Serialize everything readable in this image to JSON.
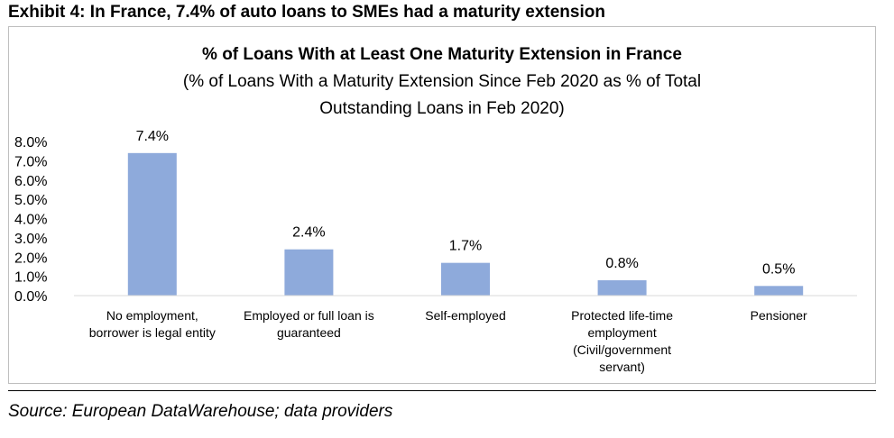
{
  "exhibit_title": "Exhibit 4: In France, 7.4% of auto loans to SMEs had a maturity extension",
  "source": "Source: European DataWarehouse; data providers",
  "chart_data": {
    "type": "bar",
    "title": "% of Loans With at Least One Maturity Extension in France",
    "subtitle_lines": [
      "(% of Loans With a Maturity Extension Since Feb 2020 as % of Total",
      "Outstanding Loans in Feb 2020)"
    ],
    "categories": [
      [
        "No employment,",
        "borrower is legal entity"
      ],
      [
        "Employed or full loan is",
        "guaranteed"
      ],
      [
        "Self-employed"
      ],
      [
        "Protected life-time",
        "employment",
        "(Civil/government",
        "servant)"
      ],
      [
        "Pensioner"
      ]
    ],
    "values": [
      7.4,
      2.4,
      1.7,
      0.8,
      0.5
    ],
    "data_labels": [
      "7.4%",
      "2.4%",
      "1.7%",
      "0.8%",
      "0.5%"
    ],
    "y_ticks": [
      "0.0%",
      "1.0%",
      "2.0%",
      "3.0%",
      "4.0%",
      "5.0%",
      "6.0%",
      "7.0%",
      "8.0%"
    ],
    "ylim": [
      0,
      8
    ],
    "bar_color": "#8eaadb",
    "grid": false,
    "legend": "none"
  }
}
